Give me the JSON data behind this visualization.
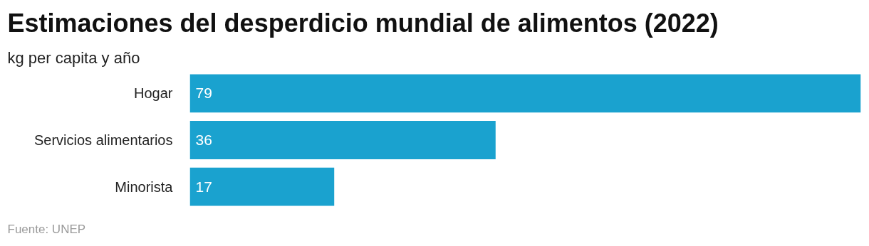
{
  "chart_data": {
    "type": "bar",
    "orientation": "horizontal",
    "title": "Estimaciones del desperdicio mundial de alimentos (2022)",
    "subtitle": "kg per capita y año",
    "categories": [
      "Hogar",
      "Servicios alimentarios",
      "Minorista"
    ],
    "values": [
      79,
      36,
      17
    ],
    "color": "#1aa2cf",
    "data_labels": true,
    "grid": false,
    "legend": false,
    "annotations": [
      "Fuente: UNEP"
    ]
  }
}
